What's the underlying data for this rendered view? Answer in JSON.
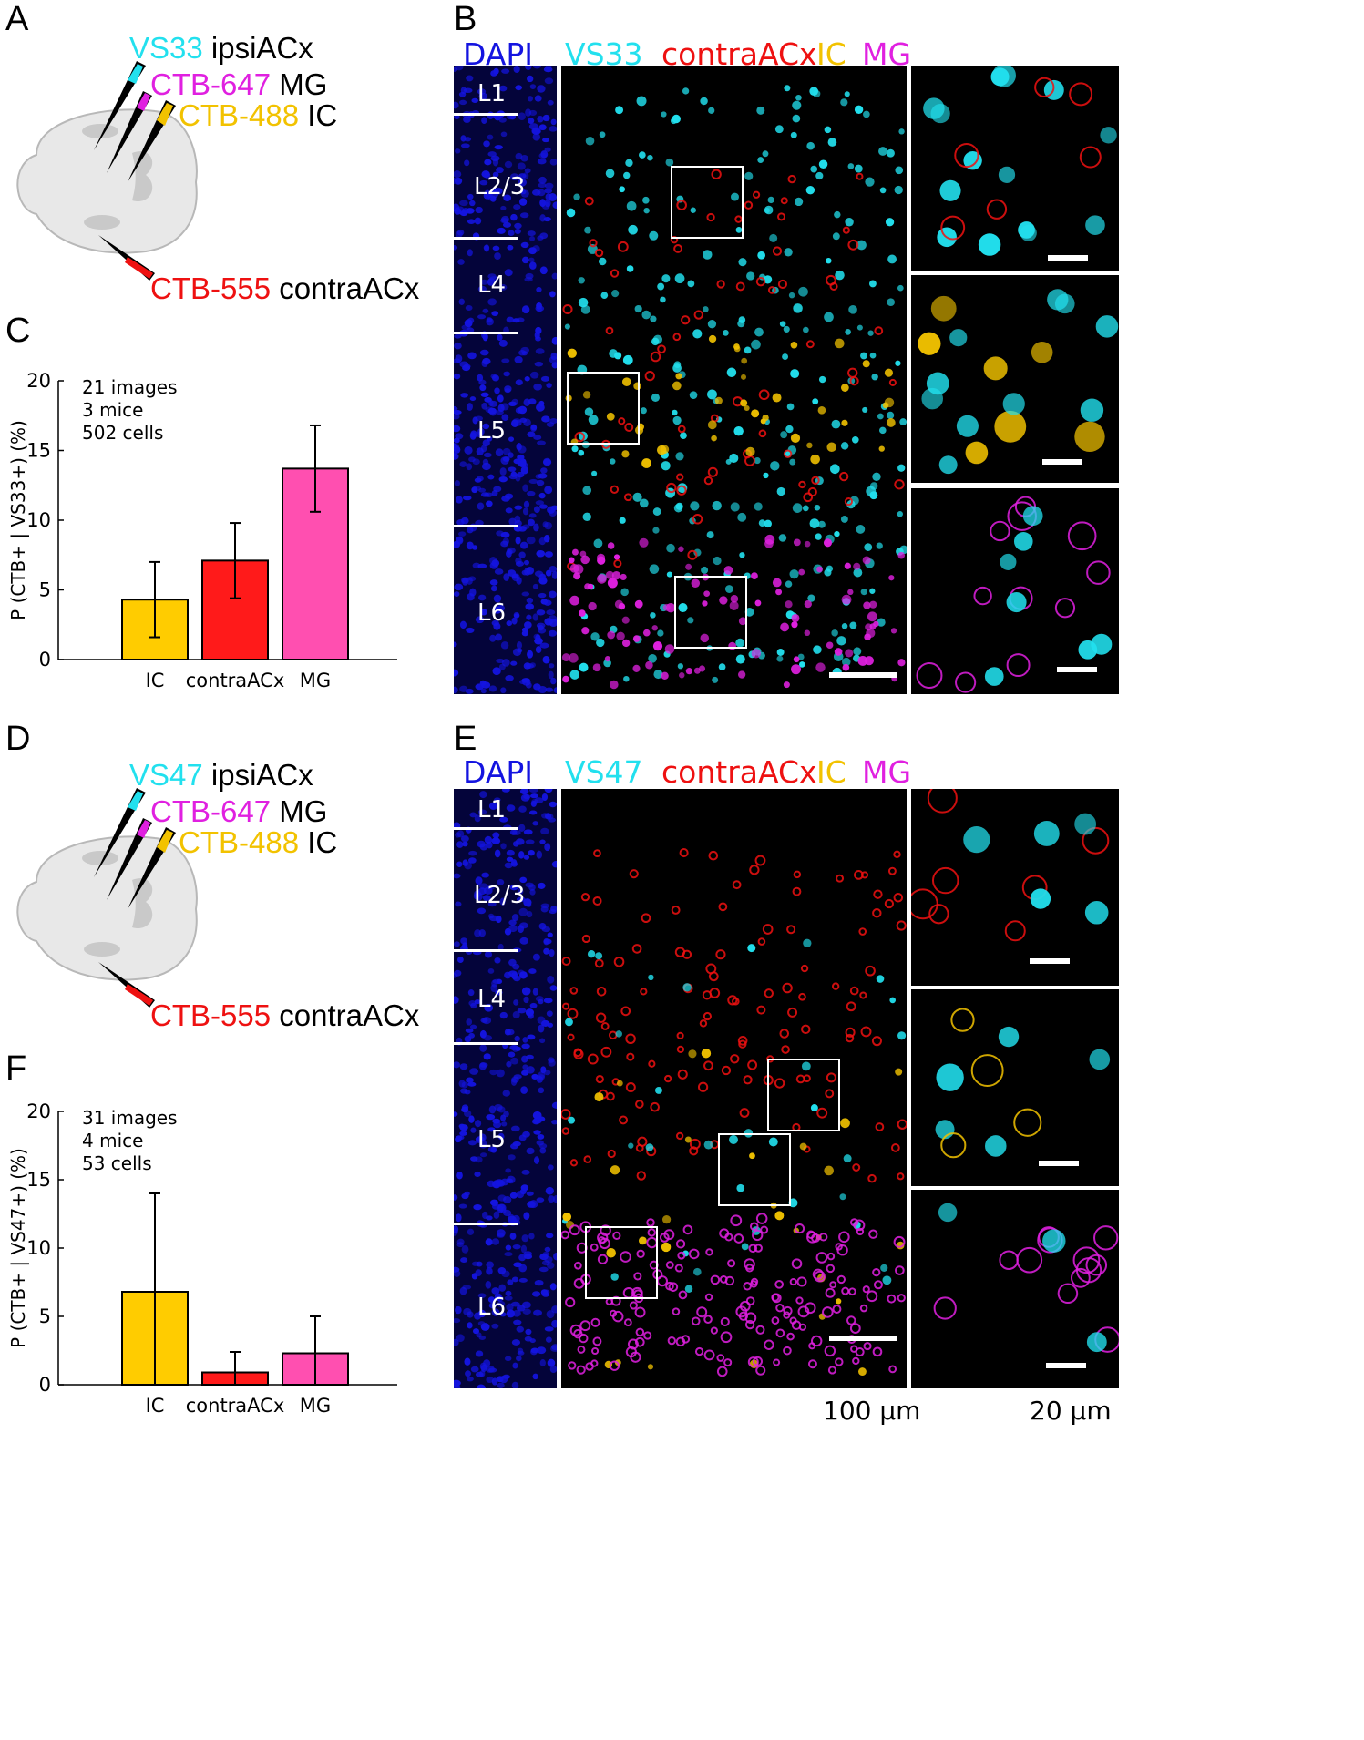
{
  "panel_letters": {
    "a": "A",
    "b": "B",
    "c": "C",
    "d": "D",
    "e": "E",
    "f": "F"
  },
  "top": {
    "probes": {
      "vs": {
        "name": "VS33",
        "target": "ipsiACx",
        "color": "#22e0ee"
      },
      "mg": {
        "name": "CTB-647",
        "target": "MG",
        "color": "#e020e0"
      },
      "ic": {
        "name": "CTB-488",
        "target": "IC",
        "color": "#f2c200"
      },
      "contra": {
        "name": "CTB-555",
        "target": "contraACx",
        "color": "#ee1111"
      }
    },
    "header": {
      "dapi": "DAPI",
      "vs": "VS33",
      "contra": "contraACx",
      "ic": "IC",
      "mg": "MG"
    }
  },
  "bottom": {
    "probes": {
      "vs": {
        "name": "VS47",
        "target": "ipsiACx",
        "color": "#22e0ee"
      },
      "mg": {
        "name": "CTB-647",
        "target": "MG",
        "color": "#e020e0"
      },
      "ic": {
        "name": "CTB-488",
        "target": "IC",
        "color": "#f2c200"
      },
      "contra": {
        "name": "CTB-555",
        "target": "contraACx",
        "color": "#ee1111"
      }
    },
    "header": {
      "dapi": "DAPI",
      "vs": "VS47",
      "contra": "contraACx",
      "ic": "IC",
      "mg": "MG"
    }
  },
  "layers": [
    "L1",
    "L2/3",
    "L4",
    "L5",
    "L6"
  ],
  "scale_bars": {
    "large": "100 µm",
    "small": "20 µm"
  },
  "colors": {
    "dapi": "#1414e0",
    "cyan": "#22e0ee",
    "red": "#ee1111",
    "yellow": "#f2c200",
    "magenta": "#e020e0"
  },
  "chart_data": [
    {
      "type": "bar",
      "ylabel": "P (CTB+ | VS33+) (%)",
      "annotation": [
        "21 images",
        "3 mice",
        "502 cells"
      ],
      "categories": [
        "IC",
        "contraACx",
        "MG"
      ],
      "values": [
        4.3,
        7.1,
        13.7
      ],
      "error": [
        2.7,
        2.7,
        3.1
      ],
      "colors": [
        "#ffcc00",
        "#ff1a1a",
        "#ff4fb0"
      ],
      "ylim": [
        0,
        20
      ],
      "yticks": [
        0,
        5,
        10,
        15,
        20
      ]
    },
    {
      "type": "bar",
      "ylabel": "P (CTB+ | VS47+) (%)",
      "annotation": [
        "31 images",
        "4 mice",
        "53 cells"
      ],
      "categories": [
        "IC",
        "contraACx",
        "MG"
      ],
      "values": [
        6.8,
        0.9,
        2.3
      ],
      "error": [
        7.2,
        1.5,
        2.7
      ],
      "colors": [
        "#ffcc00",
        "#ff1a1a",
        "#ff4fb0"
      ],
      "ylim": [
        0,
        20
      ],
      "yticks": [
        0,
        5,
        10,
        15,
        20
      ]
    }
  ]
}
